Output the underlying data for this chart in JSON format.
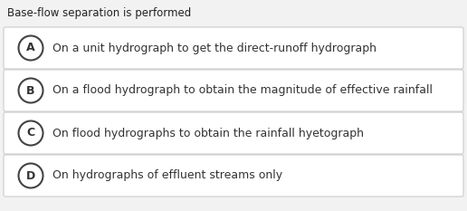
{
  "title": "Base-flow separation is performed",
  "options": [
    {
      "label": "A",
      "text": "On a unit hydrograph to get the direct-runoff hydrograph"
    },
    {
      "label": "B",
      "text": "On a flood hydrograph to obtain the magnitude of effective rainfall"
    },
    {
      "label": "C",
      "text": "On flood hydrographs to obtain the rainfall hyetograph"
    },
    {
      "label": "D",
      "text": "On hydrographs of effluent streams only"
    }
  ],
  "bg_color": "#f2f2f2",
  "option_bg_color": "#ffffff",
  "option_border_color": "#cccccc",
  "circle_edge_color": "#444444",
  "circle_face_color": "#ffffff",
  "title_color": "#222222",
  "label_color": "#333333",
  "text_color": "#333333",
  "title_fontsize": 8.5,
  "label_fontsize": 9.0,
  "text_fontsize": 9.0,
  "fig_width": 5.16,
  "fig_height": 2.33,
  "dpi": 100
}
